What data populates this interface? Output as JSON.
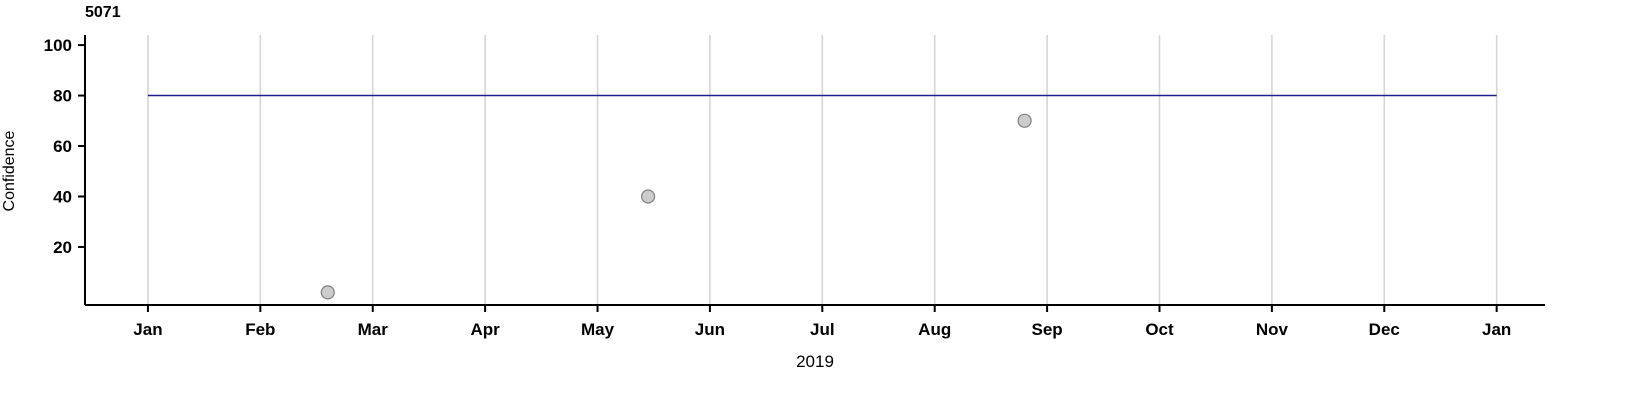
{
  "chart_data": {
    "type": "scatter",
    "title": "5071",
    "xlabel": "2019",
    "ylabel": "Confidence",
    "x_ticks": [
      {
        "pos": 0,
        "label": "Jan"
      },
      {
        "pos": 1,
        "label": "Feb"
      },
      {
        "pos": 2,
        "label": "Mar"
      },
      {
        "pos": 3,
        "label": "Apr"
      },
      {
        "pos": 4,
        "label": "May"
      },
      {
        "pos": 5,
        "label": "Jun"
      },
      {
        "pos": 6,
        "label": "Jul"
      },
      {
        "pos": 7,
        "label": "Aug"
      },
      {
        "pos": 8,
        "label": "Sep"
      },
      {
        "pos": 9,
        "label": "Oct"
      },
      {
        "pos": 10,
        "label": "Nov"
      },
      {
        "pos": 11,
        "label": "Dec"
      },
      {
        "pos": 12,
        "label": "Jan"
      }
    ],
    "y_ticks": [
      20,
      40,
      60,
      80,
      100
    ],
    "xlim": [
      -0.56,
      12.43
    ],
    "ylim": [
      -3,
      104
    ],
    "points": [
      {
        "x": 1.6,
        "y": 2
      },
      {
        "x": 4.45,
        "y": 40
      },
      {
        "x": 7.8,
        "y": 70
      }
    ],
    "reference_line": {
      "y": 80,
      "x0": 0,
      "x1": 12
    },
    "grid": "vertical-monthly-only",
    "legend": "none",
    "colors": {
      "point_fill": "#cccccc",
      "point_stroke": "#808080",
      "reference_line": "#1f1f8f",
      "gridline": "#d6d6d6",
      "axis": "#000000",
      "text": "#000000"
    }
  }
}
